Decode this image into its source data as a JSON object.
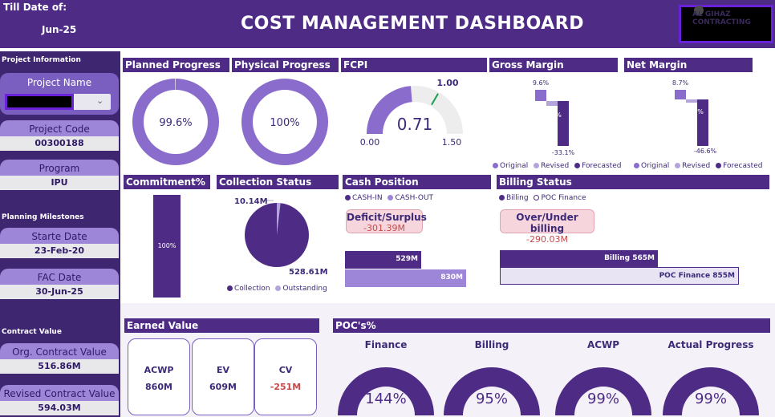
{
  "header": {
    "till_label": "Till Date of:",
    "till_value": "Jun-25",
    "title": "COST MANAGEMENT DASHBOARD",
    "logo_text_1": "AL GIHAZ",
    "logo_text_2": "CONTRACTING"
  },
  "sidebar": {
    "project_info_title": "Project Information",
    "project_name_label": "Project Name",
    "project_code_label": "Project Code",
    "project_code_value": "00300188",
    "program_label": "Program",
    "program_value": "IPU",
    "planning_title": "Planning Milestones",
    "start_label": "Starte Date",
    "start_value": "23-Feb-20",
    "fac_label": "FAC Date",
    "fac_value": "30-Jun-25",
    "contract_title": "Contract Value",
    "org_label": "Org. Contract Value",
    "org_value": "516.86M",
    "rev_label": "Revised Contract Value",
    "rev_value": "594.03M"
  },
  "planned": {
    "title": "Planned Progress",
    "value": "99.6%",
    "fraction": 0.996
  },
  "physical": {
    "title": "Physical Progress",
    "value": "100%",
    "fraction": 1.0
  },
  "fcpi": {
    "title": "FCPI",
    "value": "0.71",
    "min": "0.00",
    "max": "1.50",
    "target": "1.00"
  },
  "gross": {
    "title": "Gross Margin",
    "original": "9.6%",
    "forecast": "-33.1%",
    "mid": "%",
    "legend": [
      "Original",
      "Revised",
      "Forecasted"
    ]
  },
  "net": {
    "title": "Net Margin",
    "original": "8.7%",
    "forecast": "-46.6%",
    "mid": "%",
    "legend": [
      "Original",
      "Revised",
      "Forecasted"
    ]
  },
  "commitment": {
    "title": "Commitment%",
    "value": "100%"
  },
  "collection": {
    "title": "Collection Status",
    "outstanding": "10.14M",
    "collection": "528.61M",
    "legend": [
      "Collection",
      "Outstanding"
    ]
  },
  "cash": {
    "title": "Cash Position",
    "legend": [
      "CASH-IN",
      "CASH-OUT"
    ],
    "pill_label": "Deficit/Surplus",
    "pill_value": "-301.39M",
    "in_value": "529M",
    "out_value": "830M"
  },
  "billing": {
    "title": "Billing Status",
    "legend": [
      "Billing",
      "POC Finance"
    ],
    "pill_label": "Over/Under billing",
    "pill_value": "-290.03M",
    "billing_bar": "Billing 565M",
    "poc_bar": "POC Finance 855M"
  },
  "earned": {
    "title": "Earned Value",
    "cards": [
      {
        "label": "ACWP",
        "value": "860M"
      },
      {
        "label": "EV",
        "value": "609M"
      },
      {
        "label": "CV",
        "value": "-251M"
      }
    ]
  },
  "poc": {
    "title": "POC's%",
    "gauges": [
      {
        "label": "Finance",
        "value": "144%"
      },
      {
        "label": "Billing",
        "value": "95%"
      },
      {
        "label": "ACWP",
        "value": "99%"
      },
      {
        "label": "Actual Progress",
        "value": "99%"
      }
    ]
  },
  "colors": {
    "primary": "#4e2c86",
    "accent": "#9d86d8",
    "donut": "#8a6ccc",
    "negative": "#c44a4a"
  }
}
